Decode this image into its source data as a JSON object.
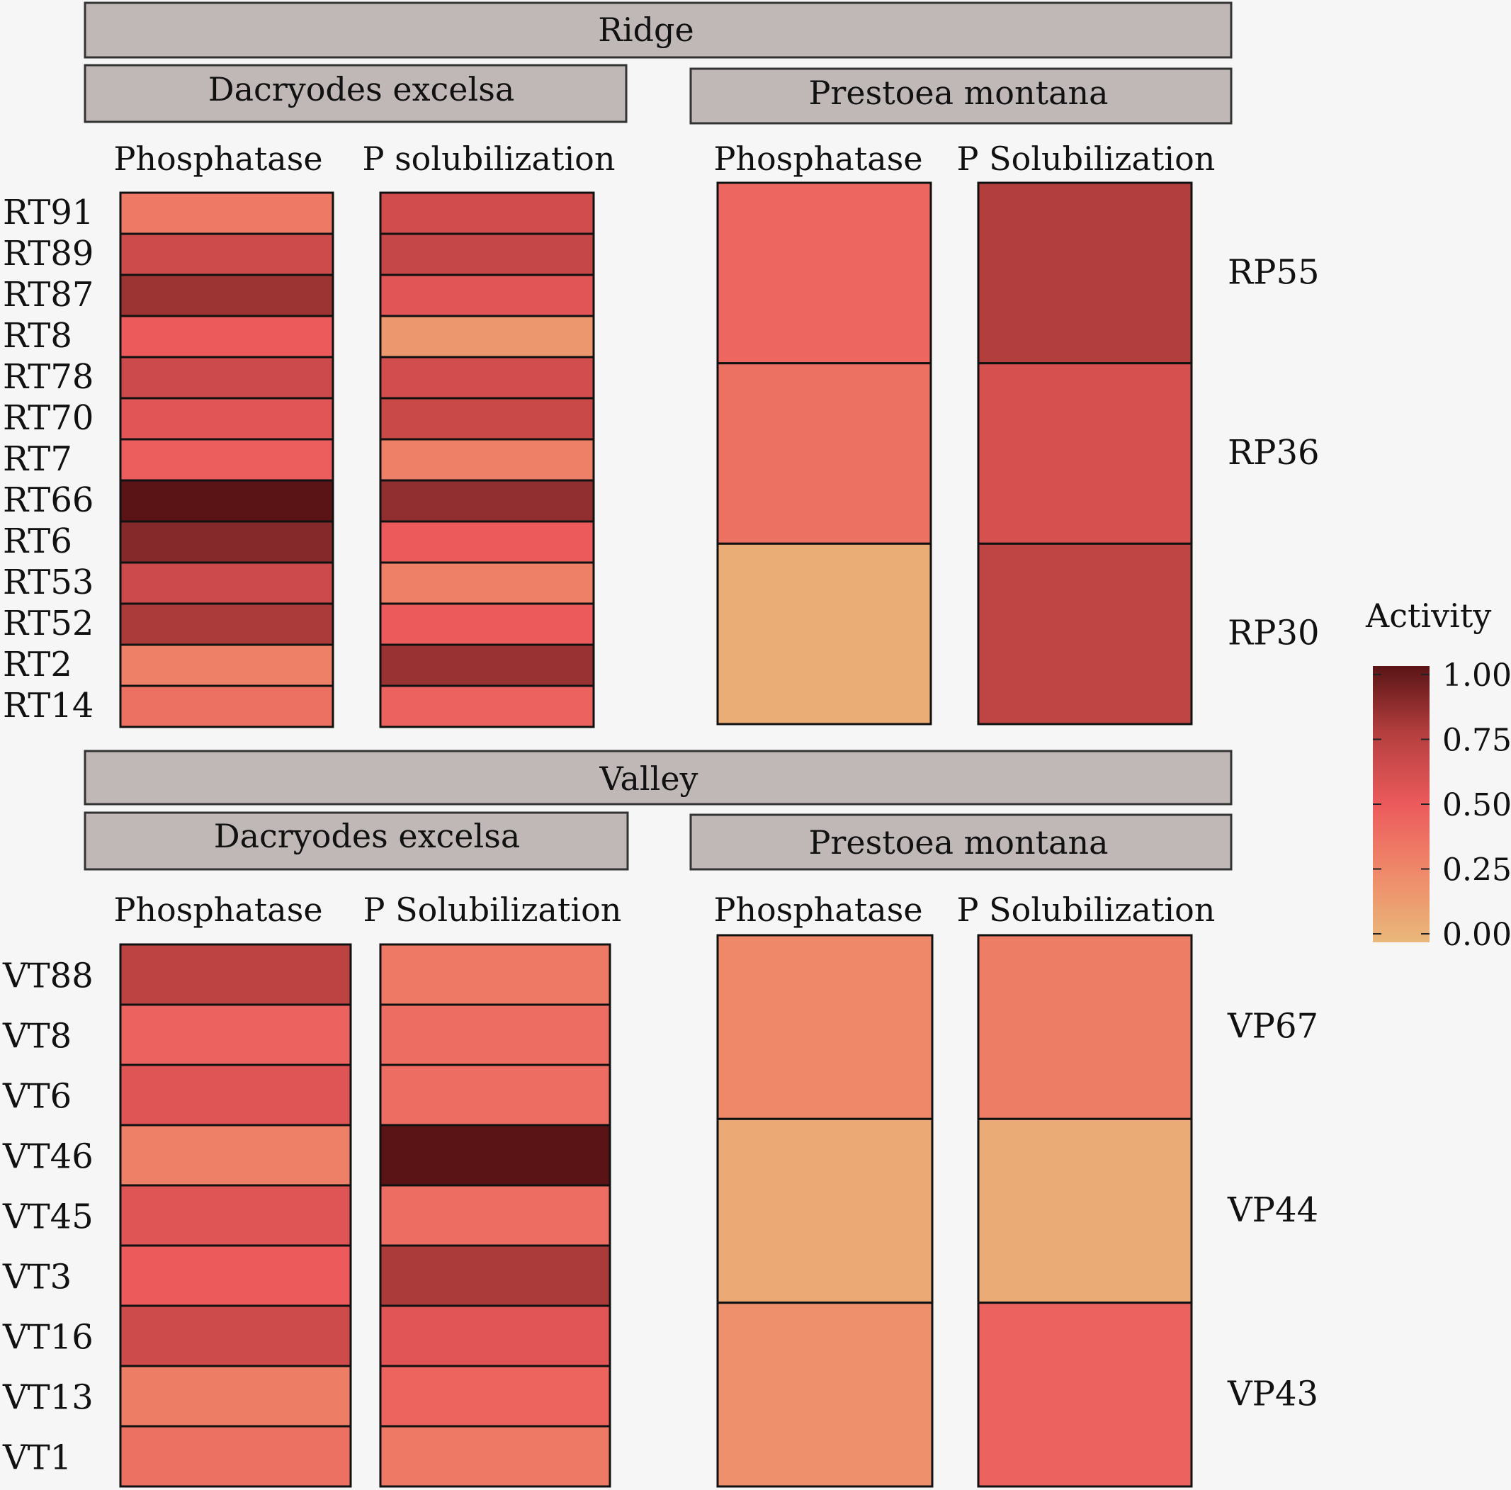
{
  "chart_data": {
    "type": "heatmap",
    "legend": {
      "title": "Activity",
      "ticks": [
        "1.00",
        "0.75",
        "0.50",
        "0.25",
        "0.00"
      ],
      "tick_values": [
        1.0,
        0.75,
        0.5,
        0.25,
        0.0
      ],
      "placement": "right",
      "colors": [
        "#e9b87a",
        "#ef8a6a",
        "#ec5a5c",
        "#b6403f",
        "#5a1416"
      ]
    },
    "panels": [
      {
        "id": "ridge-dacryodes",
        "site": "Ridge",
        "species": "Dacryodes excelsa",
        "columns": [
          "Phosphatase",
          "P solubilization"
        ],
        "rows": [
          "RT91",
          "RT89",
          "RT87",
          "RT8",
          "RT78",
          "RT70",
          "RT7",
          "RT66",
          "RT6",
          "RT53",
          "RT52",
          "RT2",
          "RT14"
        ],
        "label_side": "left",
        "values": [
          [
            0.34,
            0.63
          ],
          [
            0.64,
            0.68
          ],
          [
            0.82,
            0.55
          ],
          [
            0.5,
            0.18
          ],
          [
            0.65,
            0.62
          ],
          [
            0.55,
            0.66
          ],
          [
            0.48,
            0.3
          ],
          [
            1.0,
            0.85
          ],
          [
            0.88,
            0.5
          ],
          [
            0.65,
            0.3
          ],
          [
            0.78,
            0.5
          ],
          [
            0.3,
            0.83
          ],
          [
            0.38,
            0.46
          ]
        ]
      },
      {
        "id": "ridge-prestoea",
        "site": "Ridge",
        "species": "Prestoea montana",
        "columns": [
          "Phosphatase",
          "P Solubilization"
        ],
        "rows": [
          "RP55",
          "RP36",
          "RP30"
        ],
        "label_side": "right",
        "values": [
          [
            0.44,
            0.76
          ],
          [
            0.38,
            0.6
          ],
          [
            0.06,
            0.71
          ]
        ]
      },
      {
        "id": "valley-dacryodes",
        "site": "Valley",
        "species": "Dacryodes excelsa",
        "columns": [
          "Phosphatase",
          "P Solubilization"
        ],
        "rows": [
          "VT88",
          "VT8",
          "VT6",
          "VT46",
          "VT45",
          "VT3",
          "VT16",
          "VT13",
          "VT1"
        ],
        "label_side": "left",
        "values": [
          [
            0.72,
            0.34
          ],
          [
            0.46,
            0.4
          ],
          [
            0.56,
            0.4
          ],
          [
            0.3,
            1.0
          ],
          [
            0.56,
            0.4
          ],
          [
            0.5,
            0.78
          ],
          [
            0.64,
            0.55
          ],
          [
            0.32,
            0.45
          ],
          [
            0.38,
            0.34
          ]
        ]
      },
      {
        "id": "valley-prestoea",
        "site": "Valley",
        "species": "Prestoea montana",
        "columns": [
          "Phosphatase",
          "P Solubilization"
        ],
        "rows": [
          "VP67",
          "VP44",
          "VP43"
        ],
        "label_side": "right",
        "values": [
          [
            0.26,
            0.32
          ],
          [
            0.08,
            0.07
          ],
          [
            0.22,
            0.46
          ]
        ]
      }
    ]
  }
}
